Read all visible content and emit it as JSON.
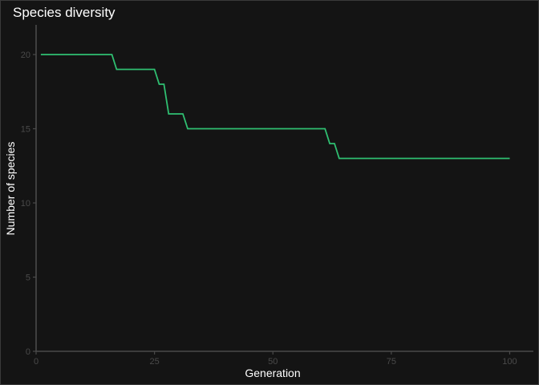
{
  "chart_data": {
    "type": "line",
    "title": "Species diversity",
    "xlabel": "Generation",
    "ylabel": "Number of species",
    "xlim": [
      0,
      105
    ],
    "ylim": [
      0,
      22
    ],
    "xticks": [
      0,
      25,
      50,
      75,
      100
    ],
    "yticks": [
      0,
      5,
      10,
      15,
      20
    ],
    "grid": false,
    "colors": {
      "background": "#141414",
      "line": "#2fbf71",
      "axis": "#4a4a4a",
      "tick_label": "#4a4a4a",
      "text": "#ffffff"
    },
    "series": [
      {
        "x": [
          1,
          16,
          17,
          25,
          26,
          27,
          28,
          31,
          32,
          61,
          62,
          63,
          64,
          100
        ],
        "values": [
          20,
          20,
          19,
          19,
          18,
          18,
          16,
          16,
          15,
          15,
          14,
          14,
          13,
          13
        ]
      }
    ]
  }
}
